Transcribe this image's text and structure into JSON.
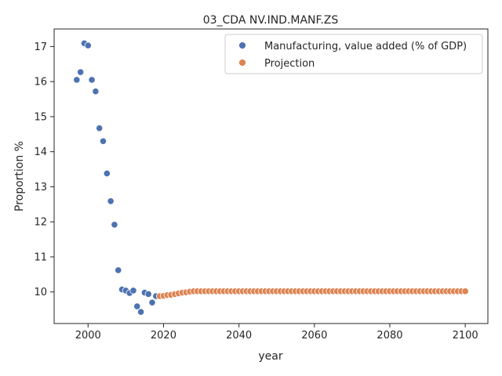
{
  "chart_data": {
    "type": "scatter",
    "title": "03_CDA NV.IND.MANF.ZS",
    "xlabel": "year",
    "ylabel": "Proportion %",
    "xlim": [
      1991,
      2106
    ],
    "ylim": [
      9.1,
      17.5
    ],
    "xticks": [
      2000,
      2020,
      2040,
      2060,
      2080,
      2100
    ],
    "yticks": [
      10,
      11,
      12,
      13,
      14,
      15,
      16,
      17
    ],
    "grid": false,
    "legend": "top-right",
    "series": [
      {
        "name": "Manufacturing, value added (% of GDP)",
        "color": "#4c72b0",
        "x": [
          1997,
          1998,
          1999,
          2000,
          2001,
          2002,
          2003,
          2004,
          2005,
          2006,
          2007,
          2008,
          2009,
          2010,
          2011,
          2012,
          2013,
          2014,
          2015,
          2016,
          2017,
          2018
        ],
        "y": [
          16.05,
          16.27,
          17.09,
          17.03,
          16.05,
          15.72,
          14.67,
          14.3,
          13.38,
          12.59,
          11.92,
          10.62,
          10.07,
          10.04,
          9.97,
          10.04,
          9.59,
          9.43,
          9.98,
          9.94,
          9.7,
          9.88
        ]
      },
      {
        "name": "Projection",
        "color": "#dd8452",
        "x": [
          2019,
          2020,
          2021,
          2022,
          2023,
          2024,
          2025,
          2026,
          2027,
          2028,
          2029,
          2030,
          2031,
          2032,
          2033,
          2034,
          2035,
          2036,
          2037,
          2038,
          2039,
          2040,
          2041,
          2042,
          2043,
          2044,
          2045,
          2046,
          2047,
          2048,
          2049,
          2050,
          2051,
          2052,
          2053,
          2054,
          2055,
          2056,
          2057,
          2058,
          2059,
          2060,
          2061,
          2062,
          2063,
          2064,
          2065,
          2066,
          2067,
          2068,
          2069,
          2070,
          2071,
          2072,
          2073,
          2074,
          2075,
          2076,
          2077,
          2078,
          2079,
          2080,
          2081,
          2082,
          2083,
          2084,
          2085,
          2086,
          2087,
          2088,
          2089,
          2090,
          2091,
          2092,
          2093,
          2094,
          2095,
          2096,
          2097,
          2098,
          2099,
          2100
        ],
        "y": [
          9.88,
          9.89,
          9.91,
          9.92,
          9.94,
          9.96,
          9.98,
          9.99,
          10.01,
          10.02,
          10.02,
          10.02,
          10.02,
          10.02,
          10.02,
          10.02,
          10.02,
          10.02,
          10.02,
          10.02,
          10.02,
          10.02,
          10.02,
          10.02,
          10.02,
          10.02,
          10.02,
          10.02,
          10.02,
          10.02,
          10.02,
          10.02,
          10.02,
          10.02,
          10.02,
          10.02,
          10.02,
          10.02,
          10.02,
          10.02,
          10.02,
          10.02,
          10.02,
          10.02,
          10.02,
          10.02,
          10.02,
          10.02,
          10.02,
          10.02,
          10.02,
          10.02,
          10.02,
          10.02,
          10.02,
          10.02,
          10.02,
          10.02,
          10.02,
          10.02,
          10.02,
          10.02,
          10.02,
          10.02,
          10.02,
          10.02,
          10.02,
          10.02,
          10.02,
          10.02,
          10.02,
          10.02,
          10.02,
          10.02,
          10.02,
          10.02,
          10.02,
          10.02,
          10.02,
          10.02,
          10.02,
          10.02
        ]
      }
    ]
  }
}
